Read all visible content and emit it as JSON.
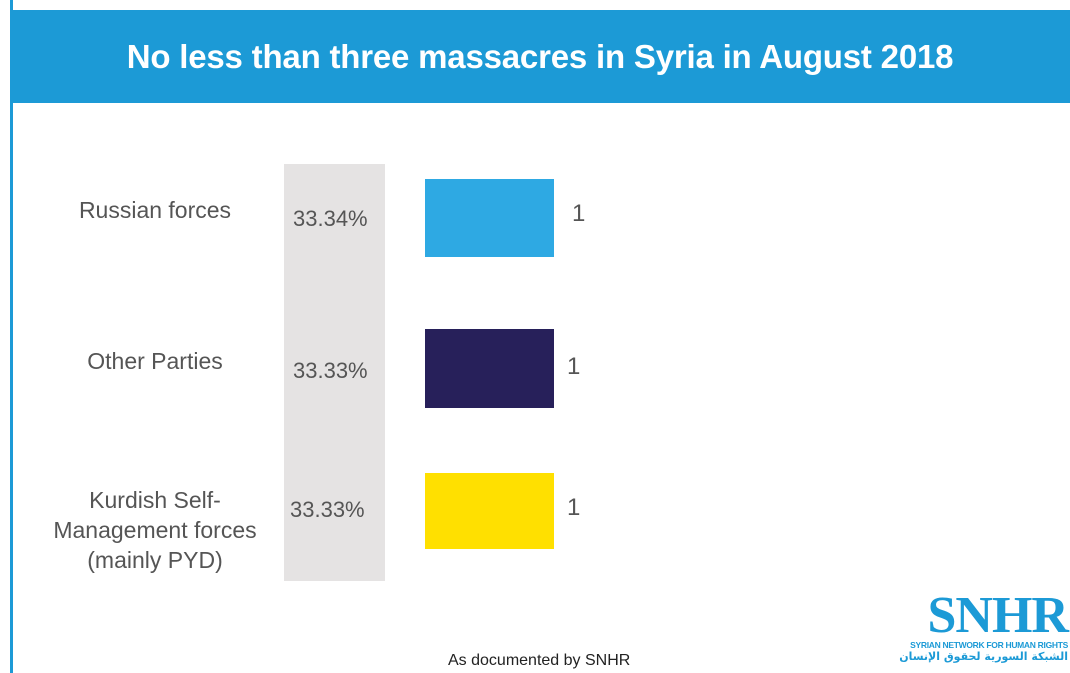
{
  "title": "No less than three massacres in Syria in August 2018",
  "footer_note": "As documented by SNHR",
  "logo": {
    "wordmark": "SNHR",
    "english": "SYRIAN NETWORK FOR HUMAN RIGHTS",
    "arabic": "الشبكة السورية لحقوق الإنسان"
  },
  "colors": {
    "banner": "#1c9ad6",
    "percent_band": "#e5e3e3"
  },
  "chart_data": {
    "type": "bar",
    "orientation": "horizontal",
    "categories": [
      "Russian forces",
      "Other Parties",
      "Kurdish Self-Management forces (mainly PYD)"
    ],
    "category_lines": [
      [
        "Russian forces"
      ],
      [
        "Other Parties"
      ],
      [
        "Kurdish Self-",
        "Management forces",
        "(mainly PYD)"
      ]
    ],
    "values": [
      1,
      1,
      1
    ],
    "value_labels": [
      "1",
      "1",
      "1"
    ],
    "percentages": [
      "33.34%",
      "33.33%",
      "33.33%"
    ],
    "bar_colors": [
      "#2ea9e3",
      "#27205a",
      "#ffe000"
    ],
    "title": "No less than three massacres in Syria in August 2018",
    "xlabel": "",
    "ylabel": "",
    "grid": false,
    "legend": "none"
  }
}
